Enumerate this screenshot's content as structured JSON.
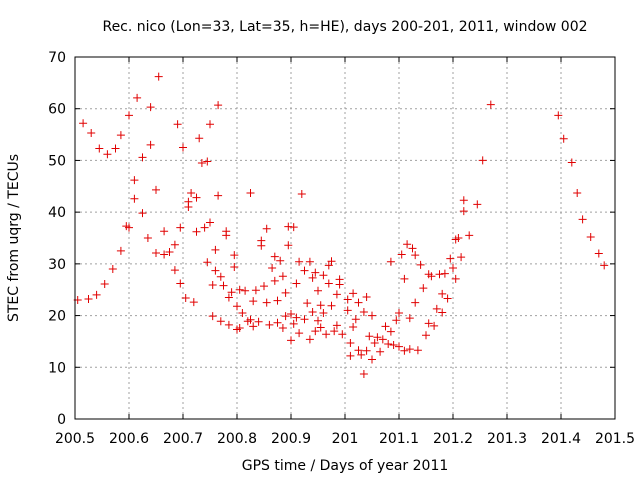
{
  "chart_data": {
    "type": "scatter",
    "title": "Rec. nico (Lon=33, Lat=35, h=HE), days 200-201, 2011, window 002",
    "xlabel": "GPS time / Days of year 2011",
    "ylabel": "STEC from uqrg / TECUs",
    "xlim": [
      200.5,
      201.5
    ],
    "ylim": [
      0,
      70
    ],
    "xticks": [
      200.5,
      200.6,
      200.7,
      200.8,
      200.9,
      201.0,
      201.1,
      201.2,
      201.3,
      201.4,
      201.5
    ],
    "xtick_labels": [
      "200.5",
      "200.6",
      "200.7",
      "200.8",
      "200.9",
      "201",
      "201.1",
      "201.2",
      "201.3",
      "201.4",
      "201.5"
    ],
    "yticks": [
      0,
      10,
      20,
      30,
      40,
      50,
      60,
      70
    ],
    "ytick_labels": [
      "0",
      "10",
      "20",
      "30",
      "40",
      "50",
      "60",
      "70"
    ],
    "grid": true,
    "marker": "+",
    "marker_color": "#e00000",
    "points": [
      [
        200.505,
        23.0
      ],
      [
        200.515,
        57.2
      ],
      [
        200.525,
        23.2
      ],
      [
        200.53,
        55.3
      ],
      [
        200.54,
        24.0
      ],
      [
        200.545,
        52.3
      ],
      [
        200.555,
        26.1
      ],
      [
        200.56,
        51.2
      ],
      [
        200.57,
        29.0
      ],
      [
        200.575,
        52.3
      ],
      [
        200.585,
        32.5
      ],
      [
        200.585,
        54.9
      ],
      [
        200.595,
        37.3
      ],
      [
        200.6,
        58.7
      ],
      [
        200.6,
        37.0
      ],
      [
        200.61,
        46.2
      ],
      [
        200.61,
        42.6
      ],
      [
        200.615,
        62.1
      ],
      [
        200.625,
        39.8
      ],
      [
        200.625,
        50.6
      ],
      [
        200.635,
        35.0
      ],
      [
        200.64,
        53.0
      ],
      [
        200.64,
        60.3
      ],
      [
        200.65,
        32.1
      ],
      [
        200.65,
        44.3
      ],
      [
        200.655,
        66.2
      ],
      [
        200.665,
        31.8
      ],
      [
        200.665,
        36.3
      ],
      [
        200.675,
        32.3
      ],
      [
        200.685,
        28.8
      ],
      [
        200.685,
        33.7
      ],
      [
        200.69,
        57.0
      ],
      [
        200.695,
        26.2
      ],
      [
        200.695,
        37.0
      ],
      [
        200.7,
        52.5
      ],
      [
        200.705,
        23.4
      ],
      [
        200.71,
        41.0
      ],
      [
        200.71,
        42.0
      ],
      [
        200.715,
        43.7
      ],
      [
        200.72,
        22.6
      ],
      [
        200.725,
        42.8
      ],
      [
        200.725,
        36.2
      ],
      [
        200.73,
        54.3
      ],
      [
        200.735,
        49.5
      ],
      [
        200.74,
        37.0
      ],
      [
        200.745,
        30.3
      ],
      [
        200.745,
        49.8
      ],
      [
        200.75,
        57.0
      ],
      [
        200.75,
        38.0
      ],
      [
        200.755,
        19.9
      ],
      [
        200.755,
        25.9
      ],
      [
        200.76,
        28.7
      ],
      [
        200.76,
        32.7
      ],
      [
        200.765,
        43.2
      ],
      [
        200.765,
        60.7
      ],
      [
        200.77,
        18.9
      ],
      [
        200.77,
        27.5
      ],
      [
        200.775,
        25.8
      ],
      [
        200.78,
        36.3
      ],
      [
        200.78,
        35.5
      ],
      [
        200.785,
        23.5
      ],
      [
        200.785,
        18.2
      ],
      [
        200.79,
        24.5
      ],
      [
        200.795,
        29.4
      ],
      [
        200.795,
        31.7
      ],
      [
        200.8,
        21.8
      ],
      [
        200.8,
        17.3
      ],
      [
        200.805,
        17.6
      ],
      [
        200.805,
        25.0
      ],
      [
        200.81,
        20.5
      ],
      [
        200.815,
        24.8
      ],
      [
        200.82,
        18.9
      ],
      [
        200.825,
        43.7
      ],
      [
        200.825,
        19.2
      ],
      [
        200.83,
        22.8
      ],
      [
        200.83,
        17.9
      ],
      [
        200.835,
        24.9
      ],
      [
        200.84,
        18.8
      ],
      [
        200.845,
        33.5
      ],
      [
        200.845,
        34.5
      ],
      [
        200.85,
        25.7
      ],
      [
        200.855,
        36.8
      ],
      [
        200.855,
        22.5
      ],
      [
        200.86,
        18.2
      ],
      [
        200.865,
        29.2
      ],
      [
        200.87,
        31.4
      ],
      [
        200.87,
        26.7
      ],
      [
        200.875,
        18.6
      ],
      [
        200.875,
        22.9
      ],
      [
        200.88,
        30.6
      ],
      [
        200.885,
        27.6
      ],
      [
        200.885,
        17.6
      ],
      [
        200.89,
        19.9
      ],
      [
        200.89,
        24.4
      ],
      [
        200.895,
        33.6
      ],
      [
        200.895,
        37.2
      ],
      [
        200.9,
        15.2
      ],
      [
        200.9,
        20.3
      ],
      [
        200.905,
        37.1
      ],
      [
        200.905,
        18.4
      ],
      [
        200.91,
        19.6
      ],
      [
        200.91,
        26.2
      ],
      [
        200.915,
        30.4
      ],
      [
        200.915,
        16.6
      ],
      [
        200.92,
        43.5
      ],
      [
        200.925,
        19.3
      ],
      [
        200.925,
        28.7
      ],
      [
        200.93,
        22.4
      ],
      [
        200.935,
        15.4
      ],
      [
        200.935,
        30.4
      ],
      [
        200.94,
        27.3
      ],
      [
        200.94,
        20.7
      ],
      [
        200.945,
        28.3
      ],
      [
        200.945,
        17.0
      ],
      [
        200.95,
        24.8
      ],
      [
        200.95,
        19.0
      ],
      [
        200.955,
        22.0
      ],
      [
        200.955,
        17.7
      ],
      [
        200.96,
        27.8
      ],
      [
        200.96,
        20.5
      ],
      [
        200.965,
        16.4
      ],
      [
        200.97,
        29.7
      ],
      [
        200.97,
        26.2
      ],
      [
        200.975,
        30.5
      ],
      [
        200.975,
        21.9
      ],
      [
        200.98,
        17.0
      ],
      [
        200.985,
        24.1
      ],
      [
        200.985,
        18.1
      ],
      [
        200.99,
        27.0
      ],
      [
        200.99,
        26.0
      ],
      [
        200.995,
        16.4
      ],
      [
        201.005,
        21.0
      ],
      [
        201.005,
        23.1
      ],
      [
        201.01,
        12.2
      ],
      [
        201.01,
        14.7
      ],
      [
        201.015,
        17.8
      ],
      [
        201.015,
        24.3
      ],
      [
        201.02,
        19.3
      ],
      [
        201.025,
        13.3
      ],
      [
        201.025,
        22.5
      ],
      [
        201.03,
        12.4
      ],
      [
        201.035,
        20.7
      ],
      [
        201.035,
        8.7
      ],
      [
        201.04,
        23.6
      ],
      [
        201.04,
        13.2
      ],
      [
        201.045,
        16.0
      ],
      [
        201.05,
        11.5
      ],
      [
        201.05,
        20.0
      ],
      [
        201.055,
        14.7
      ],
      [
        201.06,
        15.8
      ],
      [
        201.065,
        13.0
      ],
      [
        201.07,
        15.4
      ],
      [
        201.075,
        17.9
      ],
      [
        201.08,
        14.5
      ],
      [
        201.085,
        30.4
      ],
      [
        201.085,
        16.9
      ],
      [
        201.09,
        14.3
      ],
      [
        201.095,
        19.1
      ],
      [
        201.1,
        20.5
      ],
      [
        201.1,
        14.0
      ],
      [
        201.105,
        31.8
      ],
      [
        201.11,
        13.2
      ],
      [
        201.11,
        27.1
      ],
      [
        201.115,
        33.8
      ],
      [
        201.12,
        19.5
      ],
      [
        201.12,
        13.5
      ],
      [
        201.125,
        33.0
      ],
      [
        201.13,
        31.7
      ],
      [
        201.13,
        22.5
      ],
      [
        201.135,
        13.3
      ],
      [
        201.14,
        29.8
      ],
      [
        201.145,
        25.3
      ],
      [
        201.15,
        16.2
      ],
      [
        201.155,
        18.5
      ],
      [
        201.155,
        28.0
      ],
      [
        201.16,
        27.6
      ],
      [
        201.165,
        18.0
      ],
      [
        201.17,
        21.3
      ],
      [
        201.175,
        28.0
      ],
      [
        201.18,
        24.2
      ],
      [
        201.18,
        20.6
      ],
      [
        201.185,
        28.1
      ],
      [
        201.19,
        23.3
      ],
      [
        201.195,
        31.0
      ],
      [
        201.2,
        29.2
      ],
      [
        201.205,
        27.1
      ],
      [
        201.205,
        34.7
      ],
      [
        201.21,
        35.0
      ],
      [
        201.215,
        31.3
      ],
      [
        201.22,
        40.2
      ],
      [
        201.22,
        42.3
      ],
      [
        201.23,
        35.5
      ],
      [
        201.245,
        41.5
      ],
      [
        201.255,
        50.0
      ],
      [
        201.27,
        60.8
      ],
      [
        201.395,
        58.7
      ],
      [
        201.405,
        54.2
      ],
      [
        201.42,
        49.6
      ],
      [
        201.43,
        43.7
      ],
      [
        201.44,
        38.6
      ],
      [
        201.455,
        35.2
      ],
      [
        201.47,
        32.0
      ],
      [
        201.48,
        29.7
      ]
    ]
  }
}
